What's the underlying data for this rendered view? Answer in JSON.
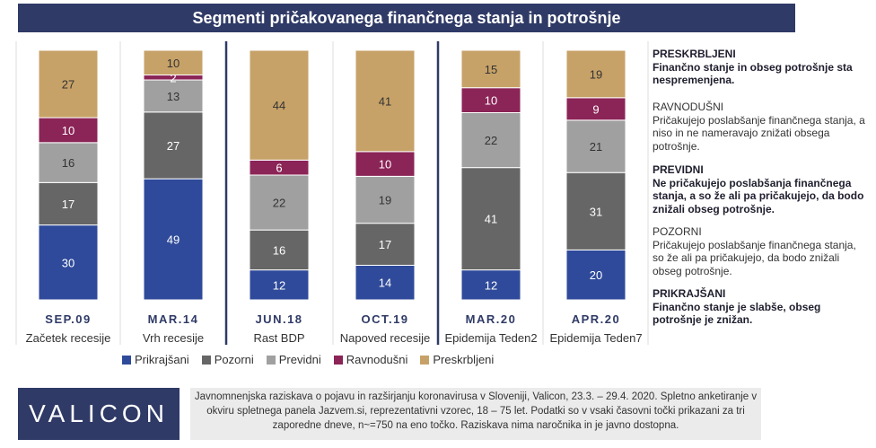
{
  "title": "Segmenti pričakovanega finančnega stanja in potrošnje",
  "chart_data": {
    "type": "bar",
    "stacked": true,
    "categories": [
      "SEP.09",
      "MAR.14",
      "JUN.18",
      "OCT.19",
      "MAR.20",
      "APR.20"
    ],
    "subcategories": [
      "Začetek recesije",
      "Vrh recesije",
      "Rast BDP",
      "Napoved recesije",
      "Epidemija Teden2",
      "Epidemija Teden7"
    ],
    "series": [
      {
        "name": "Prikrajšani",
        "color": "#2f4a9a",
        "values": [
          30,
          49,
          12,
          14,
          12,
          20
        ]
      },
      {
        "name": "Pozorni",
        "color": "#666666",
        "values": [
          17,
          27,
          16,
          17,
          41,
          31
        ]
      },
      {
        "name": "Previdni",
        "color": "#a0a0a0",
        "values": [
          16,
          13,
          22,
          19,
          22,
          21
        ]
      },
      {
        "name": "Ravnodušni",
        "color": "#8b2457",
        "values": [
          10,
          2,
          6,
          10,
          10,
          9
        ]
      },
      {
        "name": "Preskrbljeni",
        "color": "#c7a268",
        "values": [
          27,
          10,
          44,
          41,
          15,
          19
        ]
      }
    ],
    "ylim": [
      0,
      100
    ],
    "legend": "bottom"
  },
  "descriptions": [
    {
      "head": "PRESKRBLJENI",
      "text": "Finančno stanje in obseg potrošnje sta nespremenjena.",
      "bold": true
    },
    {
      "head": "RAVNODUŠNI",
      "text": "Pričakujejo poslabšanje finančnega stanja, a niso in ne nameravajo znižati obsega potrošnje.",
      "bold": false
    },
    {
      "head": "PREVIDNI",
      "text": "Ne pričakujejo poslabšanja finančnega stanja, a so že ali pa pričakujejo, da bodo znižali obseg potrošnje.",
      "bold": true
    },
    {
      "head": "POZORNI",
      "text": "Pričakujejo poslabšanje finančnega stanja, so že ali pa pričakujejo, da bodo znižali obseg potrošnje.",
      "bold": false
    },
    {
      "head": "PRIKRAJŠANI",
      "text": "Finančno stanje je slabše, obseg potrošnje je znižan.",
      "bold": true
    }
  ],
  "logo": "VALICON",
  "footnote": "Javnomnenjska raziskava o pojavu in razširjanju koronavirusa v Sloveniji, Valicon, 23.3. – 29.4. 2020. Spletno anketiranje v okviru spletnega panela Jazvem.si, reprezentativni vzorec, 18 – 75 let. Podatki so v vsaki časovni točki prikazani za tri zaporedne dneve, n~=750 na eno točko. Raziskava nima naročnika in je javno dostopna."
}
